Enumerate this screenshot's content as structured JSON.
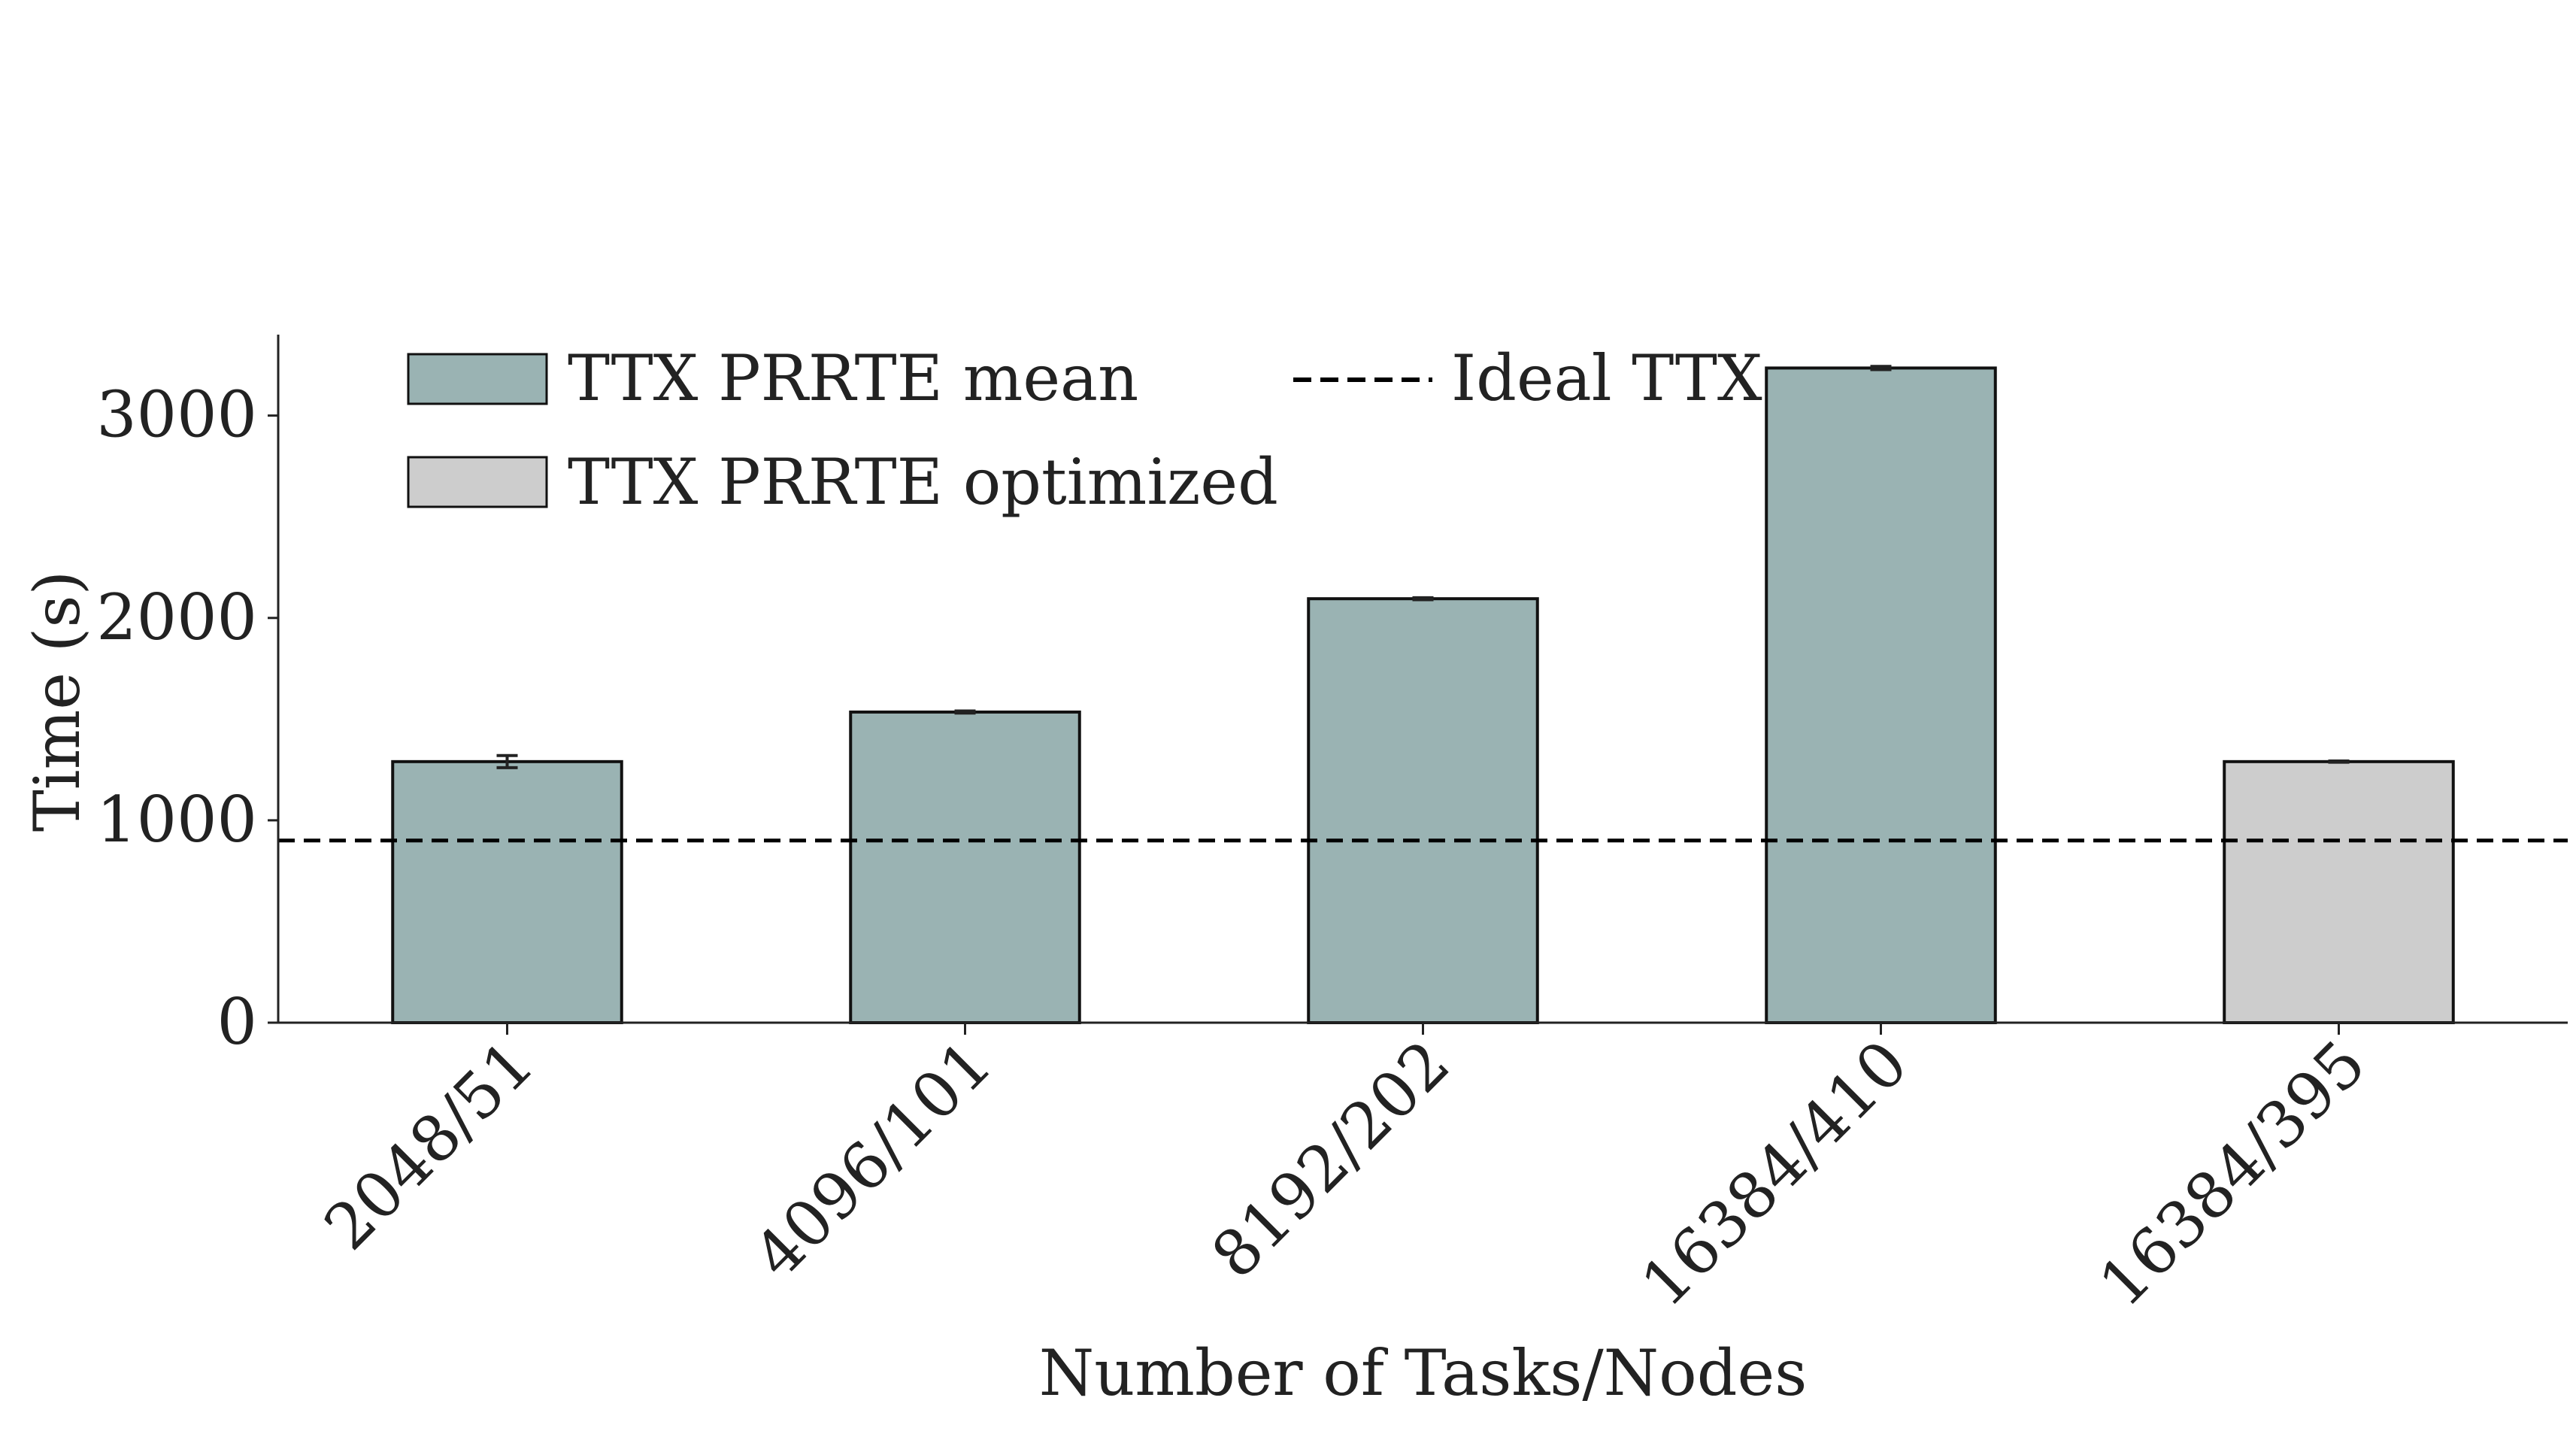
{
  "chart_data": {
    "type": "bar",
    "title": "",
    "xlabel": "Number of Tasks/Nodes",
    "ylabel": "Time (s)",
    "ylim": [
      0,
      3400
    ],
    "yticks": [
      0,
      1000,
      2000,
      3000
    ],
    "ytick_labels": [
      "0",
      "1000",
      "2000",
      "3000"
    ],
    "categories": [
      "2048/51",
      "4096/101",
      "8192/202",
      "16384/410",
      "16384/395"
    ],
    "series": [
      {
        "name": "TTX PRRTE mean",
        "color": "#9AB3B3",
        "values": [
          1290,
          1535,
          2095,
          3235,
          null
        ],
        "errors": [
          30,
          5,
          5,
          8,
          null
        ]
      },
      {
        "name": "TTX PRRTE optimized",
        "color": "#CDCDCD",
        "values": [
          null,
          null,
          null,
          null,
          1290
        ],
        "errors": [
          null,
          null,
          null,
          null,
          3
        ]
      }
    ],
    "reference_lines": [
      {
        "name": "Ideal TTX",
        "y": 900,
        "style": "dashed",
        "color": "#000000"
      }
    ],
    "grid": false,
    "legend_placement": "top-left"
  }
}
